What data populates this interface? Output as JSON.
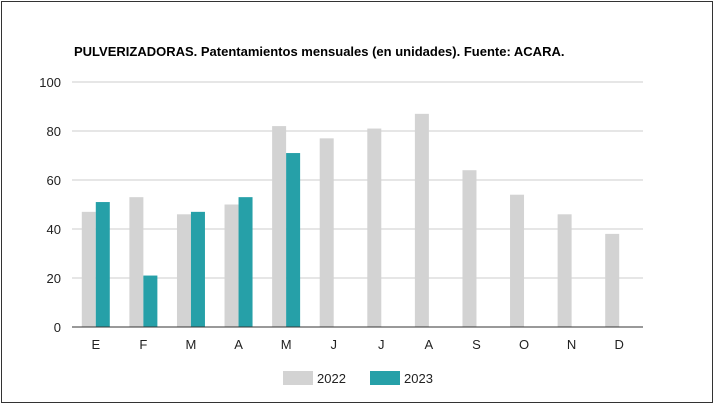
{
  "chart_data": {
    "type": "bar",
    "title": "PULVERIZADORAS. Patentamientos mensuales (en unidades). Fuente: ACARA.",
    "xlabel": "",
    "ylabel": "",
    "categories": [
      "E",
      "F",
      "M",
      "A",
      "M",
      "J",
      "J",
      "A",
      "S",
      "O",
      "N",
      "D"
    ],
    "series": [
      {
        "name": "2022",
        "color": "#d3d3d3",
        "values": [
          47,
          53,
          46,
          50,
          82,
          77,
          81,
          87,
          64,
          54,
          46,
          38
        ]
      },
      {
        "name": "2023",
        "color": "#26a0a8",
        "values": [
          51,
          21,
          47,
          53,
          71,
          null,
          null,
          null,
          null,
          null,
          null,
          null
        ]
      }
    ],
    "ylim": [
      0,
      100
    ],
    "yticks": [
      0,
      20,
      40,
      60,
      80,
      100
    ],
    "grid": true,
    "legend": "bottom"
  }
}
